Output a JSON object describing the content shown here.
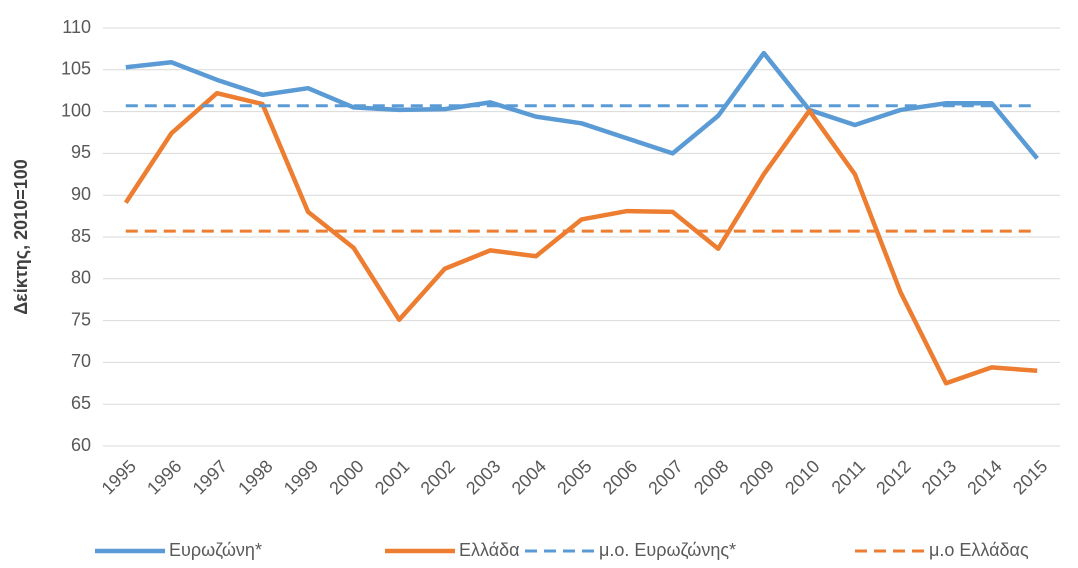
{
  "chart_data": {
    "type": "line",
    "y_label": "Δείκτης, 2010=100",
    "categories": [
      "1995",
      "1996",
      "1997",
      "1998",
      "1999",
      "2000",
      "2001",
      "2002",
      "2003",
      "2004",
      "2005",
      "2006",
      "2007",
      "2008",
      "2009",
      "2010",
      "2011",
      "2012",
      "2013",
      "2014",
      "2015"
    ],
    "series": [
      {
        "name": "Ευρωζώνη*",
        "color": "#5b9bd5",
        "dashed": false,
        "values": [
          105.3,
          105.9,
          103.8,
          102.0,
          102.8,
          100.5,
          100.2,
          100.3,
          101.1,
          99.4,
          98.6,
          96.8,
          95.0,
          99.5,
          107.0,
          100.2,
          98.4,
          100.2,
          101.0,
          101.0,
          94.4
        ]
      },
      {
        "name": "Ελλάδα",
        "color": "#ed7d31",
        "dashed": false,
        "values": [
          89.1,
          97.4,
          102.2,
          100.9,
          88.0,
          83.7,
          75.1,
          81.2,
          83.4,
          82.7,
          87.1,
          88.1,
          88.0,
          83.6,
          92.5,
          100.1,
          92.5,
          78.4,
          67.5,
          69.4,
          69.0
        ]
      },
      {
        "name": "μ.ο. Ευρωζώνης*",
        "color": "#5b9bd5",
        "dashed": true,
        "values": [
          100.7,
          100.7,
          100.7,
          100.7,
          100.7,
          100.7,
          100.7,
          100.7,
          100.7,
          100.7,
          100.7,
          100.7,
          100.7,
          100.7,
          100.7,
          100.7,
          100.7,
          100.7,
          100.7,
          100.7,
          100.7
        ]
      },
      {
        "name": "μ.ο Ελλάδας",
        "color": "#ed7d31",
        "dashed": true,
        "values": [
          85.7,
          85.7,
          85.7,
          85.7,
          85.7,
          85.7,
          85.7,
          85.7,
          85.7,
          85.7,
          85.7,
          85.7,
          85.7,
          85.7,
          85.7,
          85.7,
          85.7,
          85.7,
          85.7,
          85.7,
          85.7
        ]
      }
    ],
    "ylim": [
      60,
      110
    ],
    "yticks": [
      60,
      65,
      70,
      75,
      80,
      85,
      90,
      95,
      100,
      105,
      110
    ],
    "grid": true,
    "legend": "bottom"
  }
}
